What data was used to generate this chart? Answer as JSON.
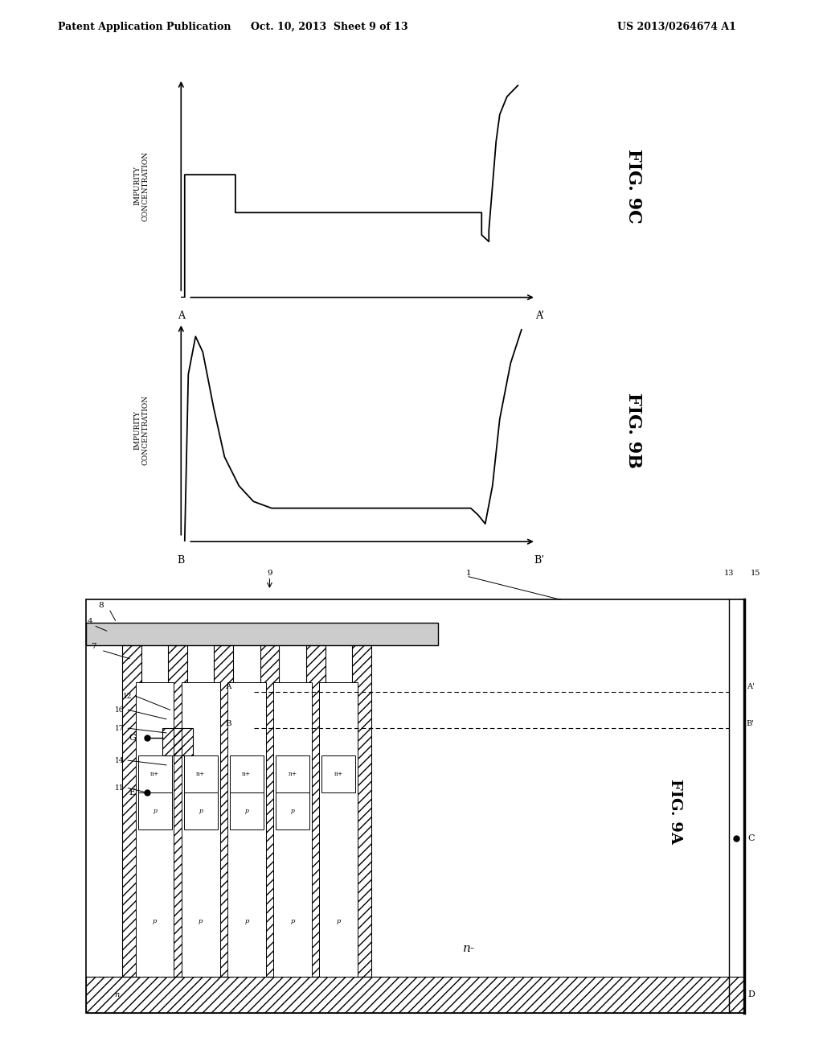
{
  "header_left": "Patent Application Publication",
  "header_mid": "Oct. 10, 2013  Sheet 9 of 13",
  "header_right": "US 2013/0264674 A1",
  "fig9c_label": "FIG. 9C",
  "fig9b_label": "FIG. 9B",
  "fig9a_label": "FIG. 9A",
  "ylabel_text": "IMPURITY\nCONCENTRATION",
  "xlabel_9c": "A",
  "xlabel_9c_prime": "A’",
  "xlabel_9b": "B",
  "xlabel_9b_prime": "B’",
  "bg_color": "#ffffff",
  "line_color": "#000000"
}
